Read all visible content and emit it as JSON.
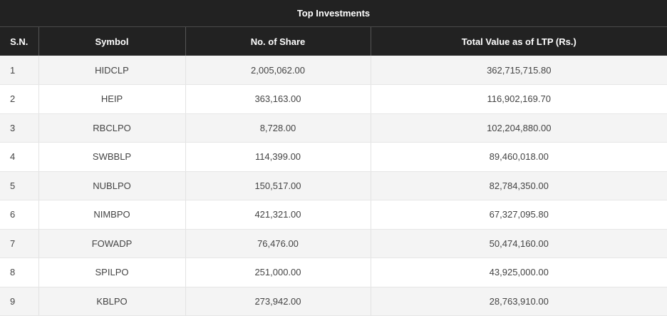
{
  "title": "Top Investments",
  "columns": {
    "sn": "S.N.",
    "symbol": "Symbol",
    "shares": "No. of Share",
    "value": "Total Value as of LTP (Rs.)"
  },
  "rows": [
    {
      "sn": "1",
      "symbol": "HIDCLP",
      "shares": "2,005,062.00",
      "value": "362,715,715.80"
    },
    {
      "sn": "2",
      "symbol": "HEIP",
      "shares": "363,163.00",
      "value": "116,902,169.70"
    },
    {
      "sn": "3",
      "symbol": "RBCLPO",
      "shares": "8,728.00",
      "value": "102,204,880.00"
    },
    {
      "sn": "4",
      "symbol": "SWBBLP",
      "shares": "114,399.00",
      "value": "89,460,018.00"
    },
    {
      "sn": "5",
      "symbol": "NUBLPO",
      "shares": "150,517.00",
      "value": "82,784,350.00"
    },
    {
      "sn": "6",
      "symbol": "NIMBPO",
      "shares": "421,321.00",
      "value": "67,327,095.80"
    },
    {
      "sn": "7",
      "symbol": "FOWADP",
      "shares": "76,476.00",
      "value": "50,474,160.00"
    },
    {
      "sn": "8",
      "symbol": "SPILPO",
      "shares": "251,000.00",
      "value": "43,925,000.00"
    },
    {
      "sn": "9",
      "symbol": "KBLPO",
      "shares": "273,942.00",
      "value": "28,763,910.00"
    }
  ]
}
